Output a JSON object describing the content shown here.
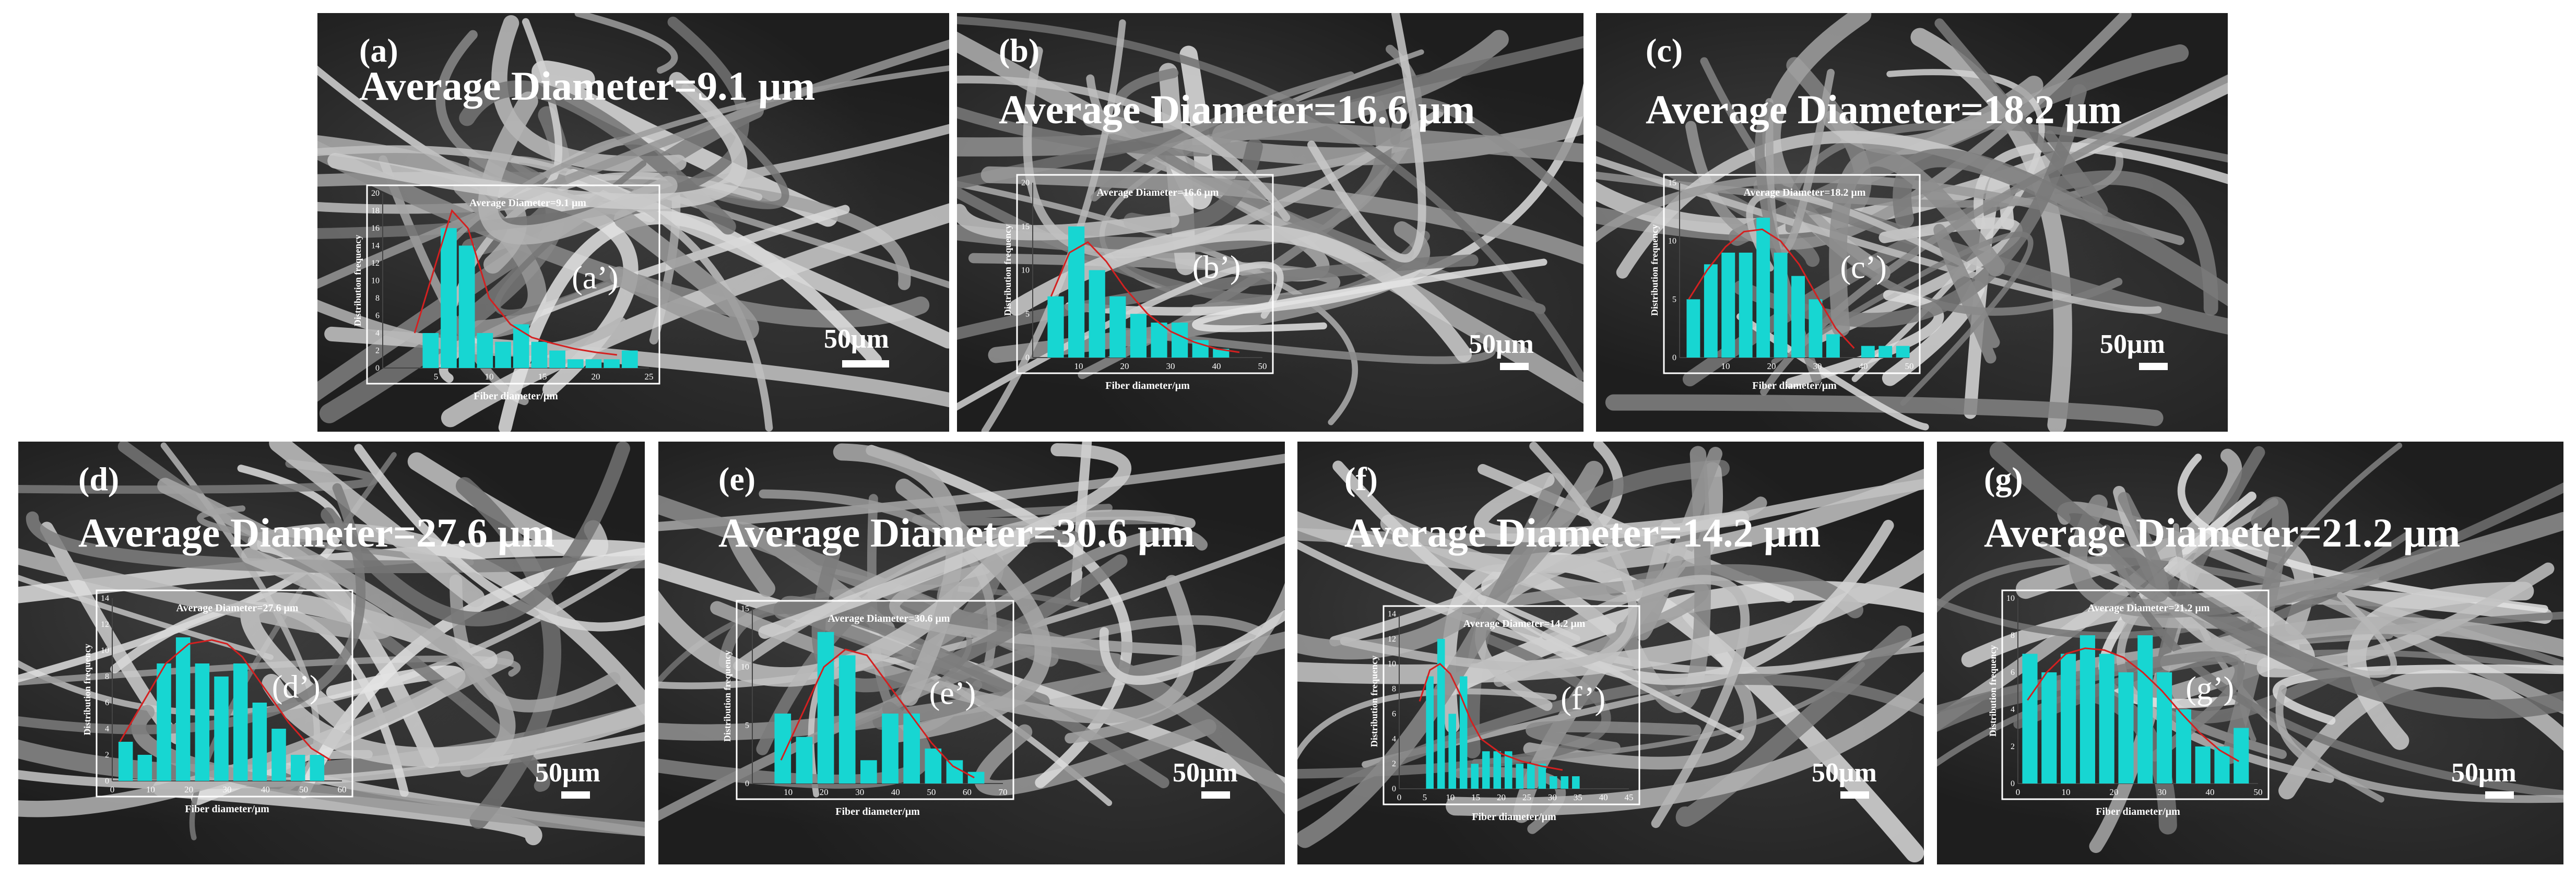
{
  "chart_data": [
    {
      "type": "bar",
      "panel": "(a)",
      "inset_label": "(a’)",
      "title": "Average Diameter=9.1 μm",
      "inset_title": "Average Diameter=9.1 μm",
      "xlabel": "Fiber diameter/μm",
      "ylabel": "Distribution frequency",
      "scale_label": "50μm",
      "xlim": [
        0,
        25
      ],
      "ylim": [
        0,
        20
      ],
      "xticks": [
        5,
        10,
        15,
        20,
        25
      ],
      "yticks": [
        0,
        2,
        4,
        6,
        8,
        10,
        12,
        14,
        16,
        18,
        20
      ],
      "bin_width": 1.7,
      "bin_centers": [
        4.5,
        6.2,
        7.9,
        9.6,
        11.3,
        13.0,
        14.7,
        16.4,
        18.1,
        19.8,
        21.5,
        23.2
      ],
      "values": [
        4,
        16,
        14,
        4,
        3,
        5,
        3,
        2,
        1,
        1,
        1,
        2
      ],
      "fit_curve": {
        "x": [
          3,
          5,
          6.5,
          8,
          10,
          12,
          14,
          16,
          18,
          20,
          22
        ],
        "y": [
          4,
          12,
          18,
          16,
          8,
          5,
          3.5,
          2.8,
          2.2,
          1.8,
          1.5
        ]
      }
    },
    {
      "type": "bar",
      "panel": "(b)",
      "inset_label": "(b’)",
      "title": "Average Diameter=16.6 μm",
      "inset_title": "Average Diameter=16.6 μm",
      "xlabel": "Fiber diameter/μm",
      "ylabel": "Distribution frequency",
      "scale_label": "50μm",
      "xlim": [
        0,
        50
      ],
      "ylim": [
        0,
        20
      ],
      "xticks": [
        10,
        20,
        30,
        40,
        50
      ],
      "yticks": [
        0,
        5,
        10,
        15,
        20
      ],
      "bin_width": 4,
      "bin_centers": [
        5,
        9.5,
        14,
        18.5,
        23,
        27.5,
        32,
        36.5,
        41
      ],
      "values": [
        7,
        15,
        10,
        7,
        5,
        4,
        4,
        2,
        1
      ],
      "fit_curve": {
        "x": [
          4,
          8,
          12,
          16,
          20,
          25,
          30,
          35,
          40,
          45
        ],
        "y": [
          7,
          12,
          13.2,
          11,
          8,
          5,
          3,
          1.8,
          1,
          0.6
        ]
      }
    },
    {
      "type": "bar",
      "panel": "(c)",
      "inset_label": "(c’)",
      "title": "Average Diameter=18.2 μm",
      "inset_title": "Average Diameter=18.2 μm",
      "xlabel": "Fiber diameter/μm",
      "ylabel": "Distribution frequency",
      "scale_label": "50μm",
      "xlim": [
        0,
        50
      ],
      "ylim": [
        0,
        15
      ],
      "xticks": [
        10,
        20,
        30,
        40,
        50
      ],
      "yticks": [
        0,
        5,
        10,
        15
      ],
      "bin_width": 3.4,
      "bin_centers": [
        3,
        6.8,
        10.6,
        14.4,
        18.2,
        22,
        25.8,
        29.6,
        33.4,
        37.2,
        41,
        44.8,
        48.6
      ],
      "values": [
        5,
        8,
        9,
        9,
        12,
        9,
        7,
        5,
        2,
        0,
        1,
        1,
        1
      ],
      "fit_curve": {
        "x": [
          2,
          6,
          10,
          14,
          18,
          22,
          26,
          30,
          34,
          38
        ],
        "y": [
          5,
          7.5,
          9.5,
          10.8,
          11,
          10,
          8,
          5.2,
          2.5,
          0.8
        ]
      }
    },
    {
      "type": "bar",
      "panel": "(d)",
      "inset_label": "(d’)",
      "title": "Average Diameter=27.6 μm",
      "inset_title": "Average Diameter=27.6 μm",
      "xlabel": "Fiber diameter/μm",
      "ylabel": "Distribution frequency",
      "scale_label": "50μm",
      "xlim": [
        0,
        60
      ],
      "ylim": [
        0,
        14
      ],
      "xticks": [
        0,
        10,
        20,
        30,
        40,
        50,
        60
      ],
      "yticks": [
        0,
        2,
        4,
        6,
        8,
        10,
        12,
        14
      ],
      "bin_width": 4.3,
      "bin_centers": [
        3.5,
        8.5,
        13.5,
        18.5,
        23.5,
        28.5,
        33.5,
        38.5,
        43.5,
        48.5,
        53.5
      ],
      "values": [
        3,
        2,
        9,
        11,
        9,
        8,
        9,
        6,
        4,
        2,
        2
      ],
      "fit_curve": {
        "x": [
          2,
          8,
          14,
          20,
          26,
          30,
          34,
          40,
          46,
          52,
          57
        ],
        "y": [
          3,
          6,
          9,
          10.5,
          10.8,
          10.5,
          9.5,
          7,
          4.5,
          2.5,
          1.6
        ]
      }
    },
    {
      "type": "bar",
      "panel": "(e)",
      "inset_label": "(e’)",
      "title": "Average Diameter=30.6 μm",
      "inset_title": "Average Diameter=30.6 μm",
      "xlabel": "Fiber diameter/μm",
      "ylabel": "Distribution frequency",
      "scale_label": "50μm",
      "xlim": [
        0,
        70
      ],
      "ylim": [
        0,
        15
      ],
      "xticks": [
        10,
        20,
        30,
        40,
        50,
        60,
        70
      ],
      "yticks": [
        0,
        5,
        10,
        15
      ],
      "bin_width": 5.2,
      "bin_centers": [
        8.5,
        14.5,
        20.5,
        26.5,
        32.5,
        38.5,
        44.5,
        50.5,
        56.5,
        62.5
      ],
      "values": [
        6,
        4,
        13,
        11,
        2,
        6,
        6,
        3,
        2,
        1
      ],
      "fit_curve": {
        "x": [
          8,
          14,
          20,
          26,
          32,
          38,
          44,
          50,
          56,
          62
        ],
        "y": [
          2,
          6,
          10,
          11.5,
          11,
          8.5,
          6,
          3.5,
          1.5,
          0.5
        ]
      }
    },
    {
      "type": "bar",
      "panel": "(f)",
      "inset_label": "(f’)",
      "title": "Average Diameter=14.2 μm",
      "inset_title": "Average Diameter=14.2 μm",
      "xlabel": "Fiber diameter/μm",
      "ylabel": "Distribution frequency",
      "scale_label": "50μm",
      "xlim": [
        0,
        45
      ],
      "ylim": [
        0,
        14
      ],
      "xticks": [
        0,
        5,
        10,
        15,
        20,
        25,
        30,
        35,
        40,
        45
      ],
      "yticks": [
        0,
        2,
        4,
        6,
        8,
        10,
        12,
        14
      ],
      "bin_width": 1.9,
      "bin_centers": [
        6,
        8.2,
        10.4,
        12.6,
        14.8,
        17,
        19.2,
        21.4,
        23.6,
        25.8,
        28,
        30.2,
        32.4,
        34.6
      ],
      "values": [
        9,
        12,
        6,
        9,
        2,
        3,
        3,
        3,
        2,
        2,
        2,
        1,
        1,
        1
      ],
      "fit_curve": {
        "x": [
          4,
          6,
          8,
          10,
          12,
          14,
          16,
          20,
          24,
          28,
          32
        ],
        "y": [
          7,
          9.5,
          10,
          9.2,
          7.5,
          5.5,
          4,
          2.8,
          2.2,
          1.8,
          1.5
        ]
      }
    },
    {
      "type": "bar",
      "panel": "(g)",
      "inset_label": "(g’)",
      "title": "Average Diameter=21.2 μm",
      "inset_title": "Average Diameter=21.2 μm",
      "xlabel": "Fiber diameter/μm",
      "ylabel": "Distribution frequency",
      "scale_label": "50μm",
      "xlim": [
        0,
        50
      ],
      "ylim": [
        0,
        10
      ],
      "xticks": [
        0,
        10,
        20,
        30,
        40,
        50
      ],
      "yticks": [
        0,
        2,
        4,
        6,
        8,
        10
      ],
      "bin_width": 3.6,
      "bin_centers": [
        2.5,
        6.5,
        10.5,
        14.5,
        18.5,
        22.5,
        26.5,
        30.5,
        34.5,
        38.5,
        42.5,
        46.5
      ],
      "values": [
        7,
        6,
        7,
        8,
        7,
        6,
        8,
        6,
        4,
        2,
        2,
        3
      ],
      "fit_curve": {
        "x": [
          2,
          6,
          10,
          14,
          18,
          22,
          26,
          30,
          34,
          38,
          42,
          46
        ],
        "y": [
          4.5,
          6,
          7,
          7.3,
          7.2,
          6.8,
          6,
          5,
          3.8,
          2.7,
          1.8,
          1.2
        ]
      }
    }
  ]
}
